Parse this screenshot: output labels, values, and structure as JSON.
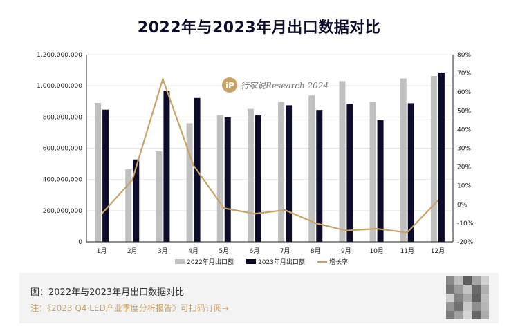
{
  "title": "2022年与2023年月出口数据对比",
  "watermark": {
    "text": "行家说Research 2024",
    "icon": "brand-logo-icon"
  },
  "caption": {
    "main": "图：2022年与2023年月出口数据对比",
    "note": "注：《2023 Q4·LED产业季度分析报告》可扫码订阅→",
    "qr_icon": "qr-code-icon"
  },
  "colors": {
    "series2022": "#c0c0c0",
    "series2023": "#0d0d2b",
    "growth": "#c9a266",
    "note": "#c9a266"
  },
  "chart_data": {
    "type": "bar",
    "categories": [
      "1月",
      "2月",
      "3月",
      "4月",
      "5月",
      "6月",
      "7月",
      "8月",
      "9月",
      "10月",
      "11月",
      "12月"
    ],
    "series": [
      {
        "name": "2022年月出口额",
        "type": "bar",
        "axis": "left",
        "values": [
          890000000,
          465000000,
          580000000,
          760000000,
          812000000,
          852000000,
          897000000,
          938000000,
          1030000000,
          897000000,
          1047000000,
          1063000000
        ]
      },
      {
        "name": "2023年月出口额",
        "type": "bar",
        "axis": "left",
        "values": [
          847000000,
          528000000,
          968000000,
          922000000,
          798000000,
          810000000,
          875000000,
          845000000,
          885000000,
          780000000,
          888000000,
          1085000000
        ]
      },
      {
        "name": "增长率",
        "type": "line",
        "axis": "right",
        "values": [
          -5,
          13,
          67,
          21,
          -2,
          -5,
          -3,
          -10,
          -14,
          -13,
          -15,
          2
        ]
      }
    ],
    "y_left": {
      "min": 0,
      "max": 1200000000,
      "step": 200000000,
      "ticks": [
        "0",
        "200,000,000",
        "400,000,000",
        "600,000,000",
        "800,000,000",
        "1,000,000,000",
        "1,200,000,000"
      ]
    },
    "y_right": {
      "min": -20,
      "max": 80,
      "step": 10,
      "ticks": [
        "-20%",
        "-10%",
        "0%",
        "10%",
        "20%",
        "30%",
        "40%",
        "50%",
        "60%",
        "70%",
        "80%"
      ]
    },
    "grid": true,
    "legend_position": "bottom"
  }
}
